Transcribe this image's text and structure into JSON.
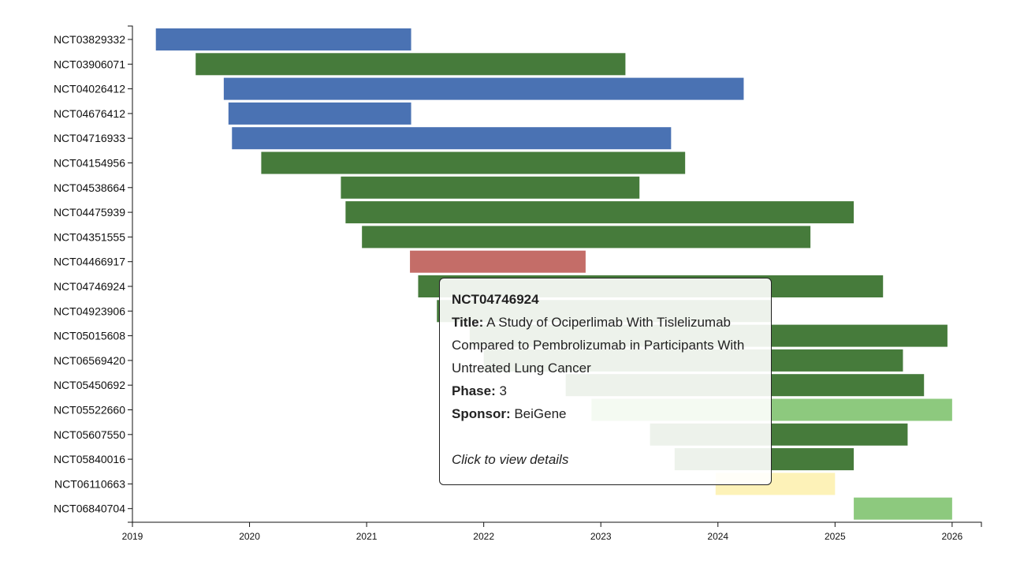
{
  "chart_data": {
    "type": "gantt",
    "title": "",
    "xlabel": "",
    "ylabel": "",
    "xlim": [
      2019,
      2026.25
    ],
    "x_ticks": [
      "2019",
      "2020",
      "2021",
      "2022",
      "2023",
      "2024",
      "2025",
      "2026"
    ],
    "colors": {
      "blue": "#4a72b3",
      "green": "#467b3b",
      "red": "#c46d68",
      "light_green": "#8dc97e",
      "yellow": "#fdf2b8"
    },
    "trials": [
      {
        "id": "NCT03829332",
        "start": 2019.2,
        "end": 2021.38,
        "color": "blue"
      },
      {
        "id": "NCT03906071",
        "start": 2019.54,
        "end": 2023.21,
        "color": "green"
      },
      {
        "id": "NCT04026412",
        "start": 2019.78,
        "end": 2024.22,
        "color": "blue"
      },
      {
        "id": "NCT04676412",
        "start": 2019.82,
        "end": 2021.38,
        "color": "blue"
      },
      {
        "id": "NCT04716933",
        "start": 2019.85,
        "end": 2023.6,
        "color": "blue"
      },
      {
        "id": "NCT04154956",
        "start": 2020.1,
        "end": 2023.72,
        "color": "green"
      },
      {
        "id": "NCT04538664",
        "start": 2020.78,
        "end": 2023.33,
        "color": "green"
      },
      {
        "id": "NCT04475939",
        "start": 2020.82,
        "end": 2025.16,
        "color": "green"
      },
      {
        "id": "NCT04351555",
        "start": 2020.96,
        "end": 2024.79,
        "color": "green"
      },
      {
        "id": "NCT04466917",
        "start": 2021.37,
        "end": 2022.87,
        "color": "red"
      },
      {
        "id": "NCT04746924",
        "start": 2021.44,
        "end": 2025.41,
        "color": "green"
      },
      {
        "id": "NCT04923906",
        "start": 2021.6,
        "end": 2024.46,
        "color": "green"
      },
      {
        "id": "NCT05015608",
        "start": 2021.88,
        "end": 2025.96,
        "color": "green"
      },
      {
        "id": "NCT06569420",
        "start": 2022.0,
        "end": 2025.58,
        "color": "green"
      },
      {
        "id": "NCT05450692",
        "start": 2022.7,
        "end": 2025.76,
        "color": "green"
      },
      {
        "id": "NCT05522660",
        "start": 2022.92,
        "end": 2026.0,
        "color": "light_green"
      },
      {
        "id": "NCT05607550",
        "start": 2023.42,
        "end": 2025.62,
        "color": "green"
      },
      {
        "id": "NCT05840016",
        "start": 2023.63,
        "end": 2025.16,
        "color": "green"
      },
      {
        "id": "NCT06110663",
        "start": 2023.98,
        "end": 2025.0,
        "color": "yellow"
      },
      {
        "id": "NCT06840704",
        "start": 2025.16,
        "end": 2026.0,
        "color": "light_green"
      }
    ]
  },
  "tooltip": {
    "id": "NCT04746924",
    "title_label": "Title:",
    "title": "A Study of Ociperlimab With Tislelizumab Compared to Pembrolizumab in Participants With Untreated Lung Cancer",
    "phase_label": "Phase:",
    "phase": "3",
    "sponsor_label": "Sponsor:",
    "sponsor": "BeiGene",
    "click_text": "Click to view details"
  }
}
